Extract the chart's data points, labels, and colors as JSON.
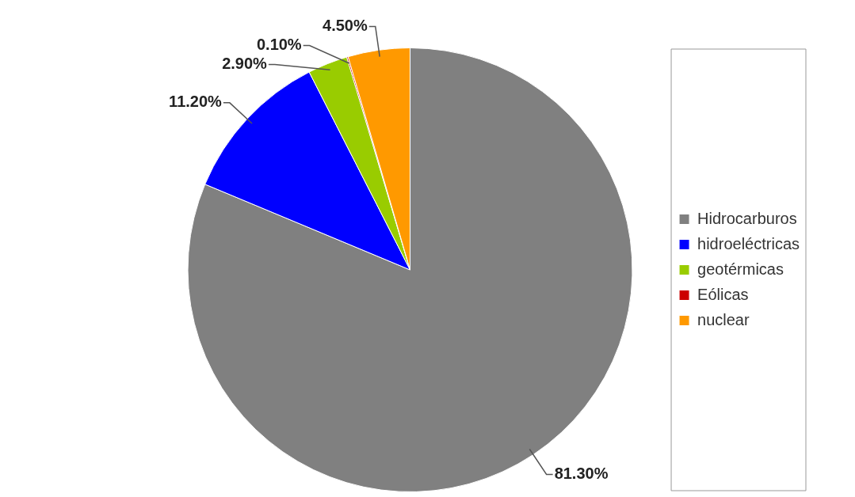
{
  "chart_data": {
    "type": "pie",
    "categories": [
      "Hidrocarburos",
      "hidroeléctricas",
      "geotérmicas",
      "Eólicas",
      "nuclear"
    ],
    "values": [
      81.3,
      11.2,
      2.9,
      0.1,
      4.5
    ],
    "colors": [
      "#808080",
      "#0000ff",
      "#99cc00",
      "#cc0000",
      "#ff9900"
    ],
    "value_labels": [
      "81.30%",
      "11.20%",
      "2.90%",
      "0.10%",
      "4.50%"
    ],
    "legend": "right"
  }
}
